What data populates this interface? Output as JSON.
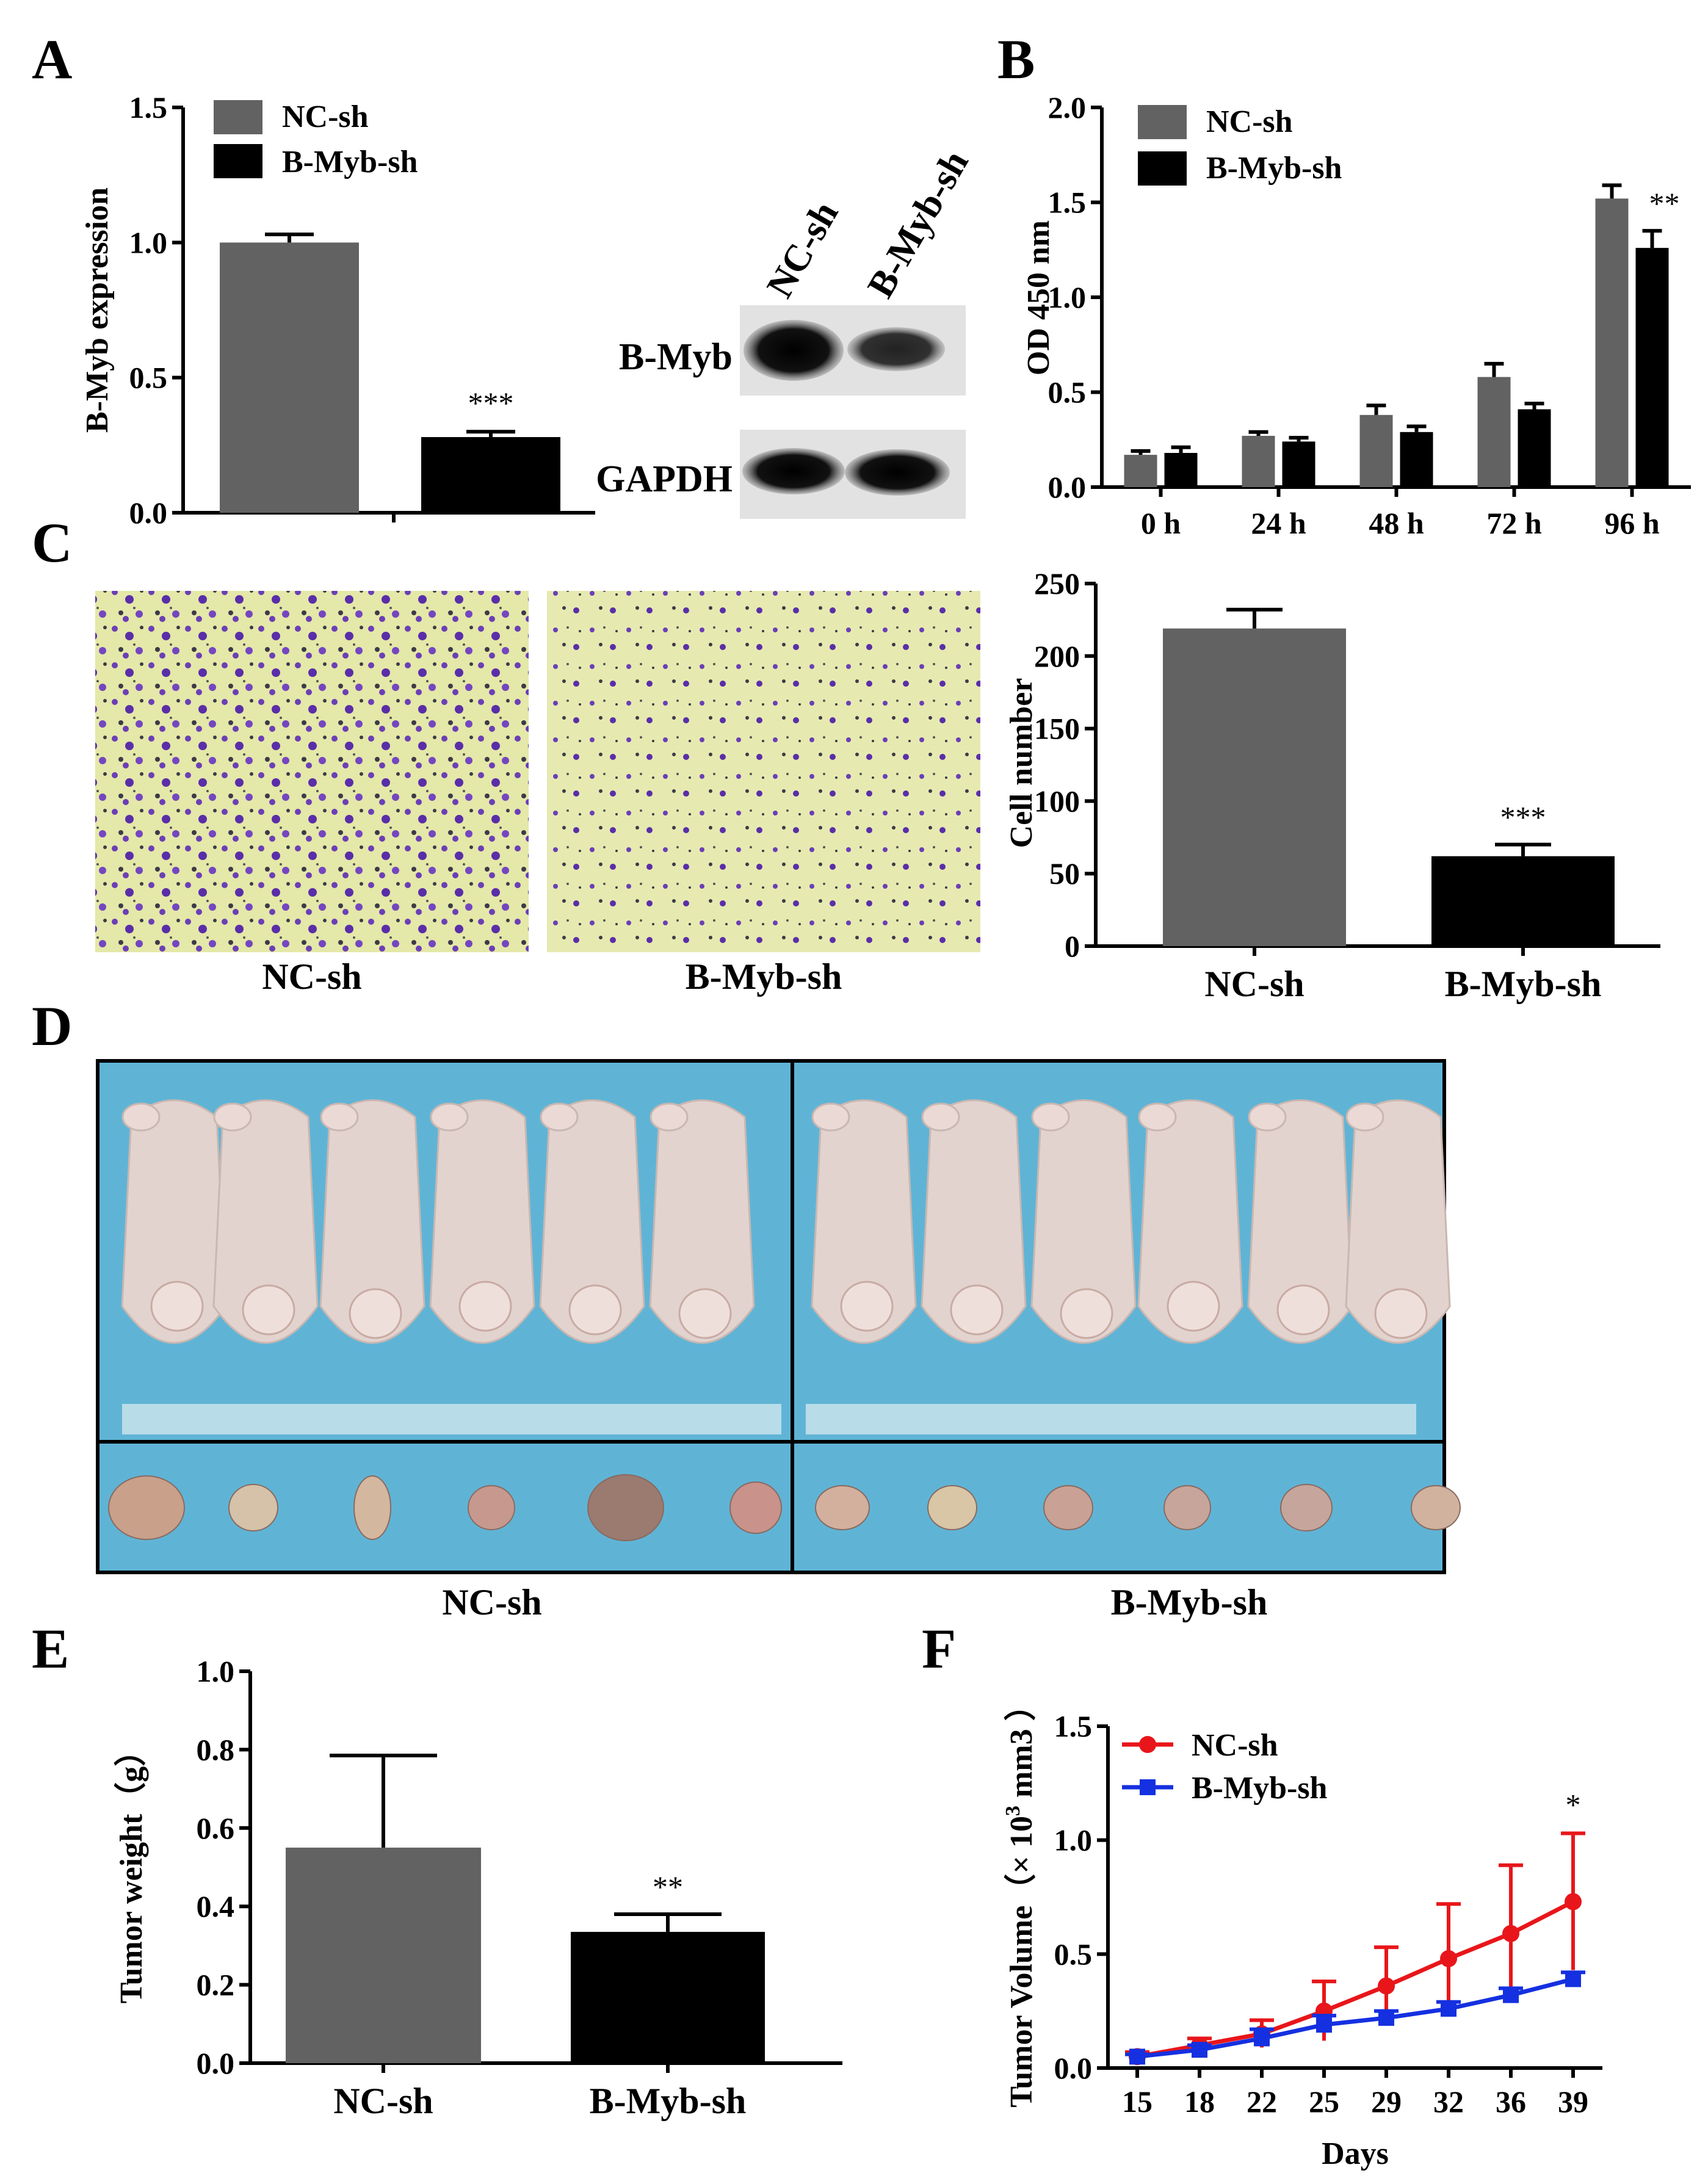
{
  "panels": {
    "A": "A",
    "B": "B",
    "C": "C",
    "D": "D",
    "E": "E",
    "F": "F"
  },
  "colors": {
    "nc": "#626262",
    "bmyb": "#000000",
    "nc_line": "#e8161a",
    "bmyb_line": "#1530e0"
  },
  "blot": {
    "lanes": [
      "NC-sh",
      "B-Myb-sh"
    ],
    "rows": [
      "B-Myb",
      "GAPDH"
    ]
  },
  "images_C": {
    "left_label": "NC-sh",
    "right_label": "B-Myb-sh",
    "description_icon": "crystal-violet-stain-micrograph"
  },
  "images_D": {
    "left_label": "NC-sh",
    "right_label": "B-Myb-sh",
    "description_icon": "nude-mice-photo"
  },
  "chart_data": [
    {
      "id": "A",
      "type": "bar",
      "ylabel": "B-Myb expression",
      "ylim": [
        0,
        1.5
      ],
      "yticks": [
        "0.0",
        "0.5",
        "1.0",
        "1.5"
      ],
      "series": [
        {
          "name": "NC-sh",
          "values": [
            1.0
          ],
          "err": [
            0.03
          ]
        },
        {
          "name": "B-Myb-sh",
          "values": [
            0.28
          ],
          "err": [
            0.02
          ]
        }
      ],
      "significance": "***",
      "legend": [
        "NC-sh",
        "B-Myb-sh"
      ]
    },
    {
      "id": "B",
      "type": "bar",
      "ylabel": "OD 450 nm",
      "ylim": [
        0,
        2.0
      ],
      "yticks": [
        "0.0",
        "0.5",
        "1.0",
        "1.5",
        "2.0"
      ],
      "categories": [
        "0 h",
        "24 h",
        "48 h",
        "72 h",
        "96 h"
      ],
      "series": [
        {
          "name": "NC-sh",
          "values": [
            0.17,
            0.27,
            0.38,
            0.58,
            1.52
          ],
          "err": [
            0.02,
            0.02,
            0.05,
            0.07,
            0.07
          ]
        },
        {
          "name": "B-Myb-sh",
          "values": [
            0.18,
            0.24,
            0.29,
            0.41,
            1.26
          ],
          "err": [
            0.03,
            0.02,
            0.03,
            0.03,
            0.09
          ]
        }
      ],
      "significance": "**",
      "legend": [
        "NC-sh",
        "B-Myb-sh"
      ]
    },
    {
      "id": "C",
      "type": "bar",
      "ylabel": "Cell number",
      "ylim": [
        0,
        250
      ],
      "yticks": [
        "0",
        "50",
        "100",
        "150",
        "200",
        "250"
      ],
      "categories": [
        "NC-sh",
        "B-Myb-sh"
      ],
      "values": [
        219,
        62
      ],
      "err": [
        13,
        8
      ],
      "significance": "***"
    },
    {
      "id": "E",
      "type": "bar",
      "ylabel": "Tumor weight（g）",
      "ylim": [
        0,
        1.0
      ],
      "yticks": [
        "0.0",
        "0.2",
        "0.4",
        "0.6",
        "0.8",
        "1.0"
      ],
      "categories": [
        "NC-sh",
        "B-Myb-sh"
      ],
      "values": [
        0.55,
        0.335
      ],
      "err": [
        0.235,
        0.045
      ],
      "significance": "**"
    },
    {
      "id": "F",
      "type": "line",
      "ylabel": "Tumor Volume（× 10",
      "ylabel_sup": "3",
      "ylabel_tail": " mm3 ）",
      "xlabel": "Days",
      "ylim": [
        0,
        1.5
      ],
      "yticks": [
        "0.0",
        "0.5",
        "1.0",
        "1.5"
      ],
      "x": [
        "15",
        "18",
        "22",
        "25",
        "29",
        "32",
        "36",
        "39"
      ],
      "series": [
        {
          "name": "NC-sh",
          "values": [
            0.05,
            0.1,
            0.15,
            0.25,
            0.36,
            0.48,
            0.59,
            0.73
          ],
          "err": [
            0.02,
            0.03,
            0.06,
            0.13,
            0.17,
            0.24,
            0.3,
            0.3
          ]
        },
        {
          "name": "B-Myb-sh",
          "values": [
            0.05,
            0.08,
            0.13,
            0.19,
            0.22,
            0.26,
            0.32,
            0.39
          ],
          "err": [
            0.01,
            0.02,
            0.04,
            0.04,
            0.03,
            0.03,
            0.03,
            0.03
          ]
        }
      ],
      "significance": "*",
      "legend": [
        "NC-sh",
        "B-Myb-sh"
      ]
    }
  ]
}
